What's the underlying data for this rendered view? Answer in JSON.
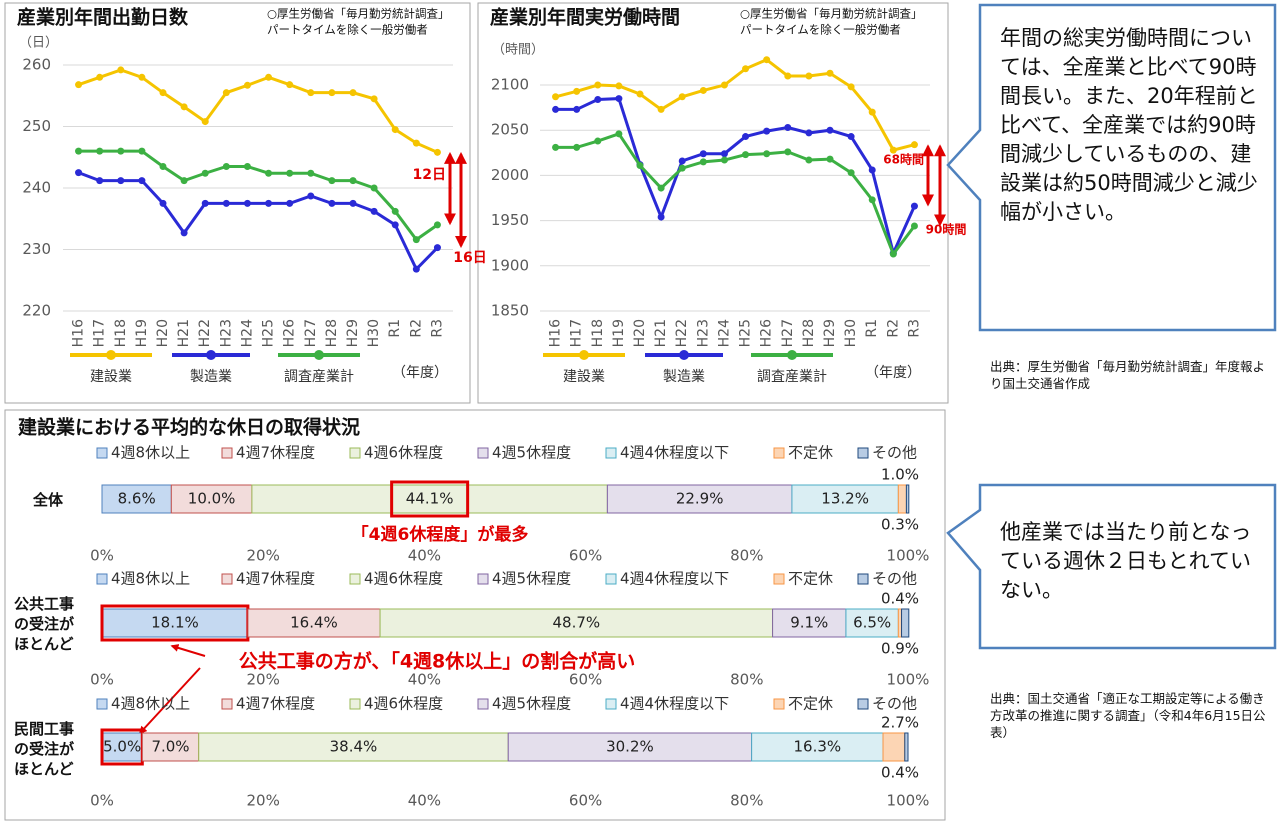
{
  "chart_data": [
    {
      "type": "line",
      "title": "産業別年間出勤日数",
      "source": [
        "○厚生労働省「毎月勤労統計調査」",
        "パートタイムを除く一般労働者"
      ],
      "y_label": "（日）",
      "x_label": "（年度）",
      "categories": [
        "H16",
        "H17",
        "H18",
        "H19",
        "H20",
        "H21",
        "H22",
        "H23",
        "H24",
        "H25",
        "H26",
        "H27",
        "H28",
        "H29",
        "H30",
        "R1",
        "R2",
        "R3"
      ],
      "series": [
        {
          "name": "建設業",
          "color": "#f5c400",
          "values": [
            256.8,
            258,
            259.2,
            258,
            255.5,
            253.2,
            250.8,
            255.5,
            256.7,
            258,
            256.8,
            255.5,
            255.5,
            255.5,
            254.5,
            249.5,
            247.3,
            245.8
          ]
        },
        {
          "name": "製造業",
          "color": "#2a2ad6",
          "values": [
            242.5,
            241.2,
            241.2,
            241.2,
            237.5,
            232.7,
            237.5,
            237.5,
            237.5,
            237.5,
            237.5,
            238.7,
            237.5,
            237.5,
            236.2,
            234,
            226.8,
            230.3
          ]
        },
        {
          "name": "調査産業計",
          "color": "#3cb043",
          "values": [
            246,
            246,
            246,
            246,
            243.5,
            241.2,
            242.4,
            243.5,
            243.5,
            242.4,
            242.4,
            242.4,
            241.2,
            241.2,
            240,
            236.2,
            231.6,
            234
          ]
        }
      ],
      "ylim": [
        220,
        262
      ],
      "yticks": [
        220,
        230,
        240,
        250,
        260
      ],
      "grid": true,
      "annotations": [
        "12日",
        "16日"
      ]
    },
    {
      "type": "line",
      "title": "産業別年間実労働時間",
      "source": [
        "○厚生労働省「毎月勤労統計調査」",
        "パートタイムを除く一般労働者"
      ],
      "y_label": "（時間）",
      "x_label": "（年度）",
      "categories": [
        "H16",
        "H17",
        "H18",
        "H19",
        "H20",
        "H21",
        "H22",
        "H23",
        "H24",
        "H25",
        "H26",
        "H27",
        "H28",
        "H29",
        "H30",
        "R1",
        "R2",
        "R3"
      ],
      "series": [
        {
          "name": "建設業",
          "color": "#f5c400",
          "values": [
            2087,
            2093,
            2100,
            2099,
            2090,
            2073,
            2087,
            2094,
            2100,
            2118,
            2128,
            2110,
            2110,
            2113,
            2098,
            2070,
            2028,
            2034
          ]
        },
        {
          "name": "製造業",
          "color": "#2a2ad6",
          "values": [
            2073,
            2073,
            2084,
            2085,
            2012,
            1954,
            2016,
            2024,
            2024,
            2043,
            2049,
            2053,
            2047,
            2050,
            2043,
            2006,
            1914,
            1966
          ]
        },
        {
          "name": "調査産業計",
          "color": "#3cb043",
          "values": [
            2031,
            2031,
            2038,
            2046,
            2011,
            1986,
            2008,
            2015,
            2017,
            2023,
            2024,
            2026,
            2017,
            2018,
            2003,
            1973,
            1913,
            1944
          ]
        }
      ],
      "ylim": [
        1850,
        2130
      ],
      "yticks": [
        1850,
        1900,
        1950,
        2000,
        2050,
        2100
      ],
      "grid": true,
      "annotations": [
        "68時間",
        "90時間"
      ]
    },
    {
      "type": "stacked-bar",
      "categories": [
        "全体"
      ],
      "highlight_series": 2,
      "xlim": [
        0,
        100
      ],
      "xticks": [
        {
          "value": 0,
          "label": "0%"
        },
        {
          "value": 20,
          "label": "20%"
        },
        {
          "value": 40,
          "label": "40%"
        },
        {
          "value": 60,
          "label": "60%"
        },
        {
          "value": 80,
          "label": "80%"
        },
        {
          "value": 100,
          "label": "100%"
        }
      ],
      "series": [
        {
          "name": "4週8休以上",
          "color": "#c5d9f1",
          "values": [
            8.6
          ],
          "value_labels": [
            "8.6%"
          ]
        },
        {
          "name": "4週7休程度",
          "color": "#f2dcdb",
          "values": [
            10.0
          ],
          "value_labels": [
            "10.0%"
          ]
        },
        {
          "name": "4週6休程度",
          "color": "#ebf1de",
          "values": [
            44.1
          ],
          "value_labels": [
            "44.1%"
          ]
        },
        {
          "name": "4週5休程度",
          "color": "#e4dfec",
          "values": [
            22.9
          ],
          "value_labels": [
            "22.9%"
          ]
        },
        {
          "name": "4週4休程度以下",
          "color": "#daeef3",
          "values": [
            13.2
          ],
          "value_labels": [
            "13.2%"
          ]
        },
        {
          "name": "不定休",
          "color": "#fcd5b4",
          "values": [
            1.0
          ],
          "value_labels": [
            "1.0%"
          ]
        },
        {
          "name": "その他",
          "color": "#b8cce4",
          "values": [
            0.3
          ],
          "value_labels": [
            "0.3%"
          ]
        }
      ]
    },
    {
      "type": "stacked-bar",
      "categories": [
        "公共工事の受注がほとんど"
      ],
      "highlight_series": 0,
      "xlim": [
        0,
        100
      ],
      "xticks": [
        {
          "value": 0,
          "label": "0%"
        },
        {
          "value": 20,
          "label": "20%"
        },
        {
          "value": 40,
          "label": "40%"
        },
        {
          "value": 60,
          "label": "60%"
        },
        {
          "value": 80,
          "label": "80%"
        },
        {
          "value": 100,
          "label": "100%"
        }
      ],
      "series": [
        {
          "name": "4週8休以上",
          "color": "#c5d9f1",
          "values": [
            18.1
          ],
          "value_labels": [
            "18.1%"
          ]
        },
        {
          "name": "4週7休程度",
          "color": "#f2dcdb",
          "values": [
            16.4
          ],
          "value_labels": [
            "16.4%"
          ]
        },
        {
          "name": "4週6休程度",
          "color": "#ebf1de",
          "values": [
            48.7
          ],
          "value_labels": [
            "48.7%"
          ]
        },
        {
          "name": "4週5休程度",
          "color": "#e4dfec",
          "values": [
            9.1
          ],
          "value_labels": [
            "9.1%"
          ]
        },
        {
          "name": "4週4休程度以下",
          "color": "#daeef3",
          "values": [
            6.5
          ],
          "value_labels": [
            "6.5%"
          ]
        },
        {
          "name": "不定休",
          "color": "#fcd5b4",
          "values": [
            0.4
          ],
          "value_labels": [
            "0.4%"
          ]
        },
        {
          "name": "その他",
          "color": "#b8cce4",
          "values": [
            0.9
          ],
          "value_labels": [
            "0.9%"
          ]
        }
      ]
    },
    {
      "type": "stacked-bar",
      "categories": [
        "民間工事の受注がほとんど"
      ],
      "highlight_series": 0,
      "xlim": [
        0,
        100
      ],
      "xticks": [
        {
          "value": 0,
          "label": "0%"
        },
        {
          "value": 20,
          "label": "20%"
        },
        {
          "value": 40,
          "label": "40%"
        },
        {
          "value": 60,
          "label": "60%"
        },
        {
          "value": 80,
          "label": "80%"
        },
        {
          "value": 100,
          "label": "100%"
        }
      ],
      "series": [
        {
          "name": "4週8休以上",
          "color": "#c5d9f1",
          "values": [
            5.0
          ],
          "value_labels": [
            "5.0%"
          ]
        },
        {
          "name": "4週7休程度",
          "color": "#f2dcdb",
          "values": [
            7.0
          ],
          "value_labels": [
            "7.0%"
          ]
        },
        {
          "name": "4週6休程度",
          "color": "#ebf1de",
          "values": [
            38.4
          ],
          "value_labels": [
            "38.4%"
          ]
        },
        {
          "name": "4週5休程度",
          "color": "#e4dfec",
          "values": [
            30.2
          ],
          "value_labels": [
            "30.2%"
          ]
        },
        {
          "name": "4週4休程度以下",
          "color": "#daeef3",
          "values": [
            16.3
          ],
          "value_labels": [
            "16.3%"
          ]
        },
        {
          "name": "不定休",
          "color": "#fcd5b4",
          "values": [
            2.7
          ],
          "value_labels": [
            "2.7%"
          ]
        },
        {
          "name": "その他",
          "color": "#b8cce4",
          "values": [
            0.4
          ],
          "value_labels": [
            "0.4%"
          ]
        }
      ]
    }
  ],
  "section_title": "建設業における平均的な休日の取得状況",
  "callouts": [
    "年間の総実労働時間については、全産業と比べて90時間長い。また、20年程前と比べて、全産業では約90時間減少しているものの、建設業は約50時間減少と減少幅が小さい。",
    "他産業では当たり前となっている週休２日もとれていない。"
  ],
  "sources": [
    "出典：厚生労働省「毎月勤労統計調査」年度報より国土交通省作成",
    "出典：国土交通省「適正な工期設定等による働き方改革の推進に関する調査」（令和4年6月15日公表）"
  ],
  "notes": [
    "「4週6休程度」が最多",
    "公共工事の方が、「4週8休以上」の割合が高い"
  ]
}
